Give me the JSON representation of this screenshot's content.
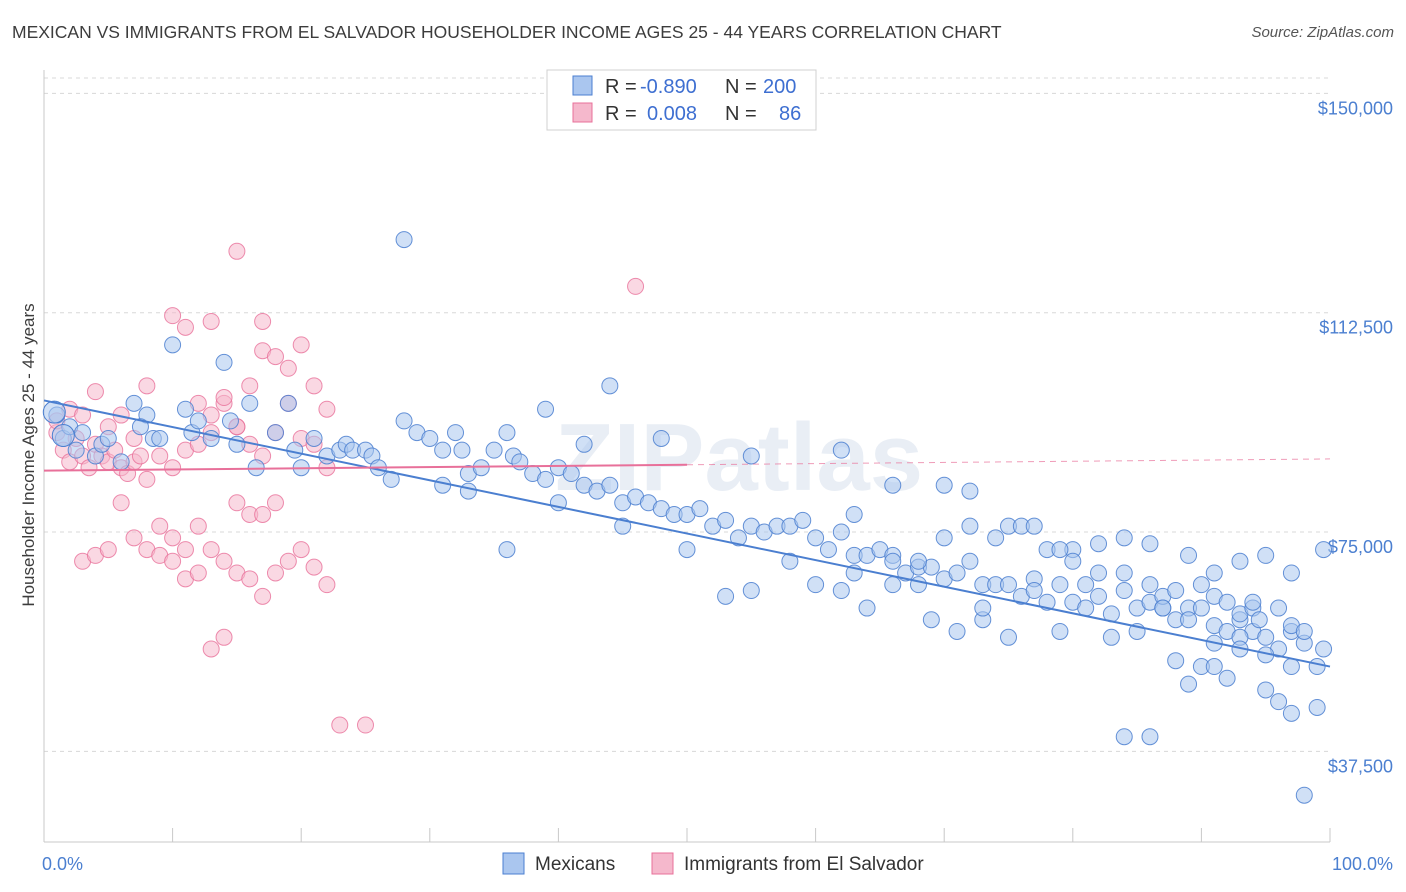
{
  "title": "MEXICAN VS IMMIGRANTS FROM EL SALVADOR HOUSEHOLDER INCOME AGES 25 - 44 YEARS CORRELATION CHART",
  "source": "Source: ZipAtlas.com",
  "watermark": "ZIPatlas",
  "colors": {
    "blue": "#4b7fd0",
    "blue_fill": "#aac6ef",
    "pink": "#e8709a",
    "pink_fill": "#f5b8cc",
    "grid": "#d8d8d8",
    "axis_text": "#4b7fd0"
  },
  "legend": {
    "r_label": "R =",
    "n_label": "N =",
    "rows": [
      {
        "r": "-0.890",
        "n": "200"
      },
      {
        "r": "0.008",
        "n": "86"
      }
    ]
  },
  "bottom_legend": [
    "Mexicans",
    "Immigrants from El Salvador"
  ],
  "chart_data": {
    "type": "scatter",
    "title": "MEXICAN VS IMMIGRANTS FROM EL SALVADOR HOUSEHOLDER INCOME AGES 25 - 44 YEARS CORRELATION CHART",
    "xlabel": "",
    "ylabel": "Householder Income Ages 25 - 44 years",
    "xlim": [
      0,
      100
    ],
    "ylim": [
      22000,
      154000
    ],
    "x_tick_labels": [
      "0.0%",
      "100.0%"
    ],
    "y_ticks": [
      37500,
      75000,
      112500,
      150000
    ],
    "y_tick_labels": [
      "$37,500",
      "$75,000",
      "$112,500",
      "$150,000"
    ],
    "grid": true,
    "legend_position": "top-center",
    "series": [
      {
        "name": "Mexicans",
        "color": "#4b7fd0",
        "trend": {
          "x0": 0,
          "y0": 97500,
          "x1": 100,
          "y1": 52000
        },
        "points": [
          [
            1,
            95
          ],
          [
            1.5,
            91
          ],
          [
            2,
            93
          ],
          [
            2.5,
            89
          ],
          [
            3,
            92
          ],
          [
            4,
            88
          ],
          [
            4.5,
            90
          ],
          [
            5,
            91
          ],
          [
            6,
            87
          ],
          [
            7,
            97
          ],
          [
            8,
            95
          ],
          [
            8.5,
            91
          ],
          [
            7.5,
            93
          ],
          [
            10,
            107
          ],
          [
            9,
            91
          ],
          [
            11,
            96
          ],
          [
            11.5,
            92
          ],
          [
            12,
            94
          ],
          [
            13,
            91
          ],
          [
            14,
            104
          ],
          [
            14.5,
            94
          ],
          [
            15,
            90
          ],
          [
            16,
            97
          ],
          [
            16.5,
            86
          ],
          [
            18,
            92
          ],
          [
            19,
            97
          ],
          [
            19.5,
            89
          ],
          [
            20,
            86
          ],
          [
            21,
            91
          ],
          [
            22,
            88
          ],
          [
            23,
            89
          ],
          [
            23.5,
            90
          ],
          [
            24,
            89
          ],
          [
            25,
            89
          ],
          [
            25.5,
            88
          ],
          [
            26,
            86
          ],
          [
            27,
            84
          ],
          [
            28,
            94
          ],
          [
            29,
            92
          ],
          [
            30,
            91
          ],
          [
            31,
            89
          ],
          [
            32,
            92
          ],
          [
            32.5,
            89
          ],
          [
            33,
            85
          ],
          [
            34,
            86
          ],
          [
            35,
            89
          ],
          [
            36,
            92
          ],
          [
            36.5,
            88
          ],
          [
            37,
            87
          ],
          [
            38,
            85
          ],
          [
            39,
            84
          ],
          [
            40,
            86
          ],
          [
            41,
            85
          ],
          [
            42,
            83
          ],
          [
            43,
            82
          ],
          [
            44,
            83
          ],
          [
            45,
            80
          ],
          [
            46,
            81
          ],
          [
            47,
            80
          ],
          [
            48,
            79
          ],
          [
            49,
            78
          ],
          [
            50,
            78
          ],
          [
            51,
            79
          ],
          [
            52,
            76
          ],
          [
            53,
            77
          ],
          [
            54,
            74
          ],
          [
            55,
            76
          ],
          [
            56,
            75
          ],
          [
            57,
            76
          ],
          [
            58,
            76
          ],
          [
            59,
            77
          ],
          [
            60,
            74
          ],
          [
            61,
            72
          ],
          [
            62,
            75
          ],
          [
            63,
            71
          ],
          [
            64,
            71
          ],
          [
            65,
            72
          ],
          [
            66,
            71
          ],
          [
            67,
            68
          ],
          [
            68,
            69
          ],
          [
            69,
            69
          ],
          [
            70,
            67
          ],
          [
            71,
            68
          ],
          [
            72,
            70
          ],
          [
            73,
            66
          ],
          [
            74,
            66
          ],
          [
            75,
            66
          ],
          [
            76,
            64
          ],
          [
            77,
            67
          ],
          [
            78,
            63
          ],
          [
            79,
            66
          ],
          [
            80,
            63
          ],
          [
            81,
            66
          ],
          [
            82,
            64
          ],
          [
            83,
            61
          ],
          [
            84,
            65
          ],
          [
            85,
            62
          ],
          [
            86,
            63
          ],
          [
            87,
            62
          ],
          [
            88,
            60
          ],
          [
            89,
            62
          ],
          [
            90,
            62
          ],
          [
            91,
            59
          ],
          [
            92,
            58
          ],
          [
            93,
            60
          ],
          [
            94,
            58
          ],
          [
            95,
            57
          ],
          [
            96,
            55
          ],
          [
            97,
            58
          ],
          [
            98,
            56
          ],
          [
            99,
            52
          ],
          [
            99.5,
            55
          ],
          [
            28,
            125
          ],
          [
            44,
            100
          ],
          [
            39,
            96
          ],
          [
            42,
            90
          ],
          [
            48,
            91
          ],
          [
            55,
            88
          ],
          [
            62,
            89
          ],
          [
            63,
            78
          ],
          [
            66,
            83
          ],
          [
            70,
            83
          ],
          [
            72,
            82
          ],
          [
            74,
            74
          ],
          [
            75,
            76
          ],
          [
            78,
            72
          ],
          [
            80,
            72
          ],
          [
            82,
            73
          ],
          [
            84,
            74
          ],
          [
            86,
            73
          ],
          [
            89,
            71
          ],
          [
            91,
            68
          ],
          [
            93,
            70
          ],
          [
            95,
            71
          ],
          [
            97,
            68
          ],
          [
            73,
            60
          ],
          [
            63,
            68
          ],
          [
            66,
            66
          ],
          [
            68,
            70
          ],
          [
            70,
            74
          ],
          [
            72,
            76
          ],
          [
            76,
            76
          ],
          [
            77,
            76
          ],
          [
            79,
            72
          ],
          [
            80,
            70
          ],
          [
            82,
            68
          ],
          [
            84,
            68
          ],
          [
            86,
            66
          ],
          [
            87,
            64
          ],
          [
            88,
            65
          ],
          [
            90,
            66
          ],
          [
            91,
            64
          ],
          [
            92,
            63
          ],
          [
            93,
            61
          ],
          [
            94,
            62
          ],
          [
            96,
            62
          ],
          [
            97,
            59
          ],
          [
            98,
            58
          ],
          [
            88,
            53
          ],
          [
            89,
            49
          ],
          [
            90,
            52
          ],
          [
            91,
            52
          ],
          [
            92,
            50
          ],
          [
            93,
            57
          ],
          [
            94,
            63
          ],
          [
            94.5,
            60
          ],
          [
            95,
            48
          ],
          [
            96,
            46
          ],
          [
            97,
            44
          ],
          [
            98,
            30
          ],
          [
            99,
            45
          ],
          [
            99.5,
            72
          ],
          [
            84,
            40
          ],
          [
            86,
            40
          ],
          [
            53,
            64
          ],
          [
            55,
            65
          ],
          [
            58,
            70
          ],
          [
            60,
            66
          ],
          [
            62,
            65
          ],
          [
            64,
            62
          ],
          [
            66,
            70
          ],
          [
            68,
            66
          ],
          [
            69,
            60
          ],
          [
            71,
            58
          ],
          [
            73,
            62
          ],
          [
            75,
            57
          ],
          [
            77,
            65
          ],
          [
            79,
            58
          ],
          [
            81,
            62
          ],
          [
            83,
            57
          ],
          [
            85,
            58
          ],
          [
            87,
            62
          ],
          [
            89,
            60
          ],
          [
            91,
            56
          ],
          [
            93,
            55
          ],
          [
            95,
            54
          ],
          [
            97,
            52
          ],
          [
            36,
            72
          ],
          [
            40,
            80
          ],
          [
            45,
            76
          ],
          [
            50,
            72
          ],
          [
            31,
            83
          ],
          [
            33,
            82
          ]
        ]
      },
      {
        "name": "Immigrants from El Salvador",
        "color": "#e8709a",
        "trend": {
          "x0": 0,
          "y0": 85500,
          "x1": 50,
          "y1": 86500
        },
        "trend_dashed": {
          "x0": 50,
          "y0": 86500,
          "x1": 100,
          "y1": 87500
        },
        "points": [
          [
            1,
            92
          ],
          [
            1.5,
            89
          ],
          [
            2,
            87
          ],
          [
            2.5,
            91
          ],
          [
            3,
            88
          ],
          [
            3.5,
            86
          ],
          [
            4,
            90
          ],
          [
            4.5,
            88
          ],
          [
            5,
            87
          ],
          [
            5.5,
            89
          ],
          [
            6,
            86
          ],
          [
            6.5,
            85
          ],
          [
            7,
            87
          ],
          [
            7.5,
            88
          ],
          [
            8,
            84
          ],
          [
            1,
            94
          ],
          [
            2,
            96
          ],
          [
            3,
            95
          ],
          [
            4,
            99
          ],
          [
            5,
            93
          ],
          [
            6,
            95
          ],
          [
            7,
            91
          ],
          [
            8,
            100
          ],
          [
            9,
            88
          ],
          [
            10,
            86
          ],
          [
            11,
            89
          ],
          [
            12,
            90
          ],
          [
            13,
            92
          ],
          [
            14,
            97
          ],
          [
            15,
            93
          ],
          [
            16,
            90
          ],
          [
            17,
            88
          ],
          [
            18,
            92
          ],
          [
            19,
            97
          ],
          [
            20,
            91
          ],
          [
            21,
            90
          ],
          [
            22,
            86
          ],
          [
            12,
            97
          ],
          [
            13,
            95
          ],
          [
            14,
            98
          ],
          [
            15,
            93
          ],
          [
            16,
            100
          ],
          [
            17,
            106
          ],
          [
            18,
            105
          ],
          [
            19,
            103
          ],
          [
            20,
            107
          ],
          [
            21,
            100
          ],
          [
            22,
            96
          ],
          [
            10,
            112
          ],
          [
            11,
            110
          ],
          [
            13,
            111
          ],
          [
            15,
            123
          ],
          [
            17,
            111
          ],
          [
            6,
            80
          ],
          [
            7,
            74
          ],
          [
            8,
            72
          ],
          [
            9,
            71
          ],
          [
            10,
            70
          ],
          [
            11,
            72
          ],
          [
            12,
            76
          ],
          [
            13,
            72
          ],
          [
            14,
            70
          ],
          [
            15,
            68
          ],
          [
            16,
            67
          ],
          [
            17,
            64
          ],
          [
            18,
            68
          ],
          [
            19,
            70
          ],
          [
            20,
            72
          ],
          [
            21,
            69
          ],
          [
            22,
            66
          ],
          [
            9,
            76
          ],
          [
            10,
            74
          ],
          [
            11,
            67
          ],
          [
            12,
            68
          ],
          [
            13,
            55
          ],
          [
            14,
            57
          ],
          [
            15,
            80
          ],
          [
            16,
            78
          ],
          [
            17,
            78
          ],
          [
            18,
            80
          ],
          [
            3,
            70
          ],
          [
            4,
            71
          ],
          [
            5,
            72
          ],
          [
            23,
            42
          ],
          [
            25,
            42
          ],
          [
            46,
            117
          ]
        ]
      }
    ]
  }
}
